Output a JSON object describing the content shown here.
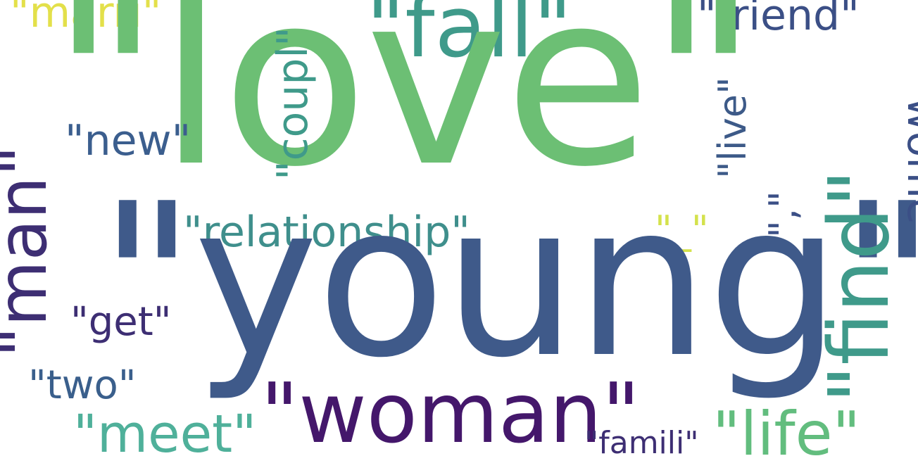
{
  "words": {
    "love": "\"love\"",
    "young": "\"young\"",
    "fall": "\"fall\"",
    "friend": "\"friend\"",
    "marri": "\"marri\"",
    "new": "\"new\"",
    "relationship": "\"relationship\"",
    "get": "\"get\"",
    "two": "\"two\"",
    "meet": "\"meet\"",
    "woman": "\"woman\"",
    "famili": "\"famili\"",
    "life": "\"life\"",
    "underscore": "\"_\"",
    "man": "\"man\"",
    "coupl": "\"coupl\"",
    "live": "\"live\"",
    "find": "\"find\"",
    "comma": "\",\"",
    "partial_right": "\"wome"
  },
  "colors": {
    "background": "#ffffff",
    "palette": [
      "#44176b",
      "#3d2e73",
      "#3b4f86",
      "#3f5a8a",
      "#3f9a8a",
      "#4fb09a",
      "#62bd7e",
      "#6cbf74",
      "#d4e24c",
      "#e3e04a"
    ]
  }
}
